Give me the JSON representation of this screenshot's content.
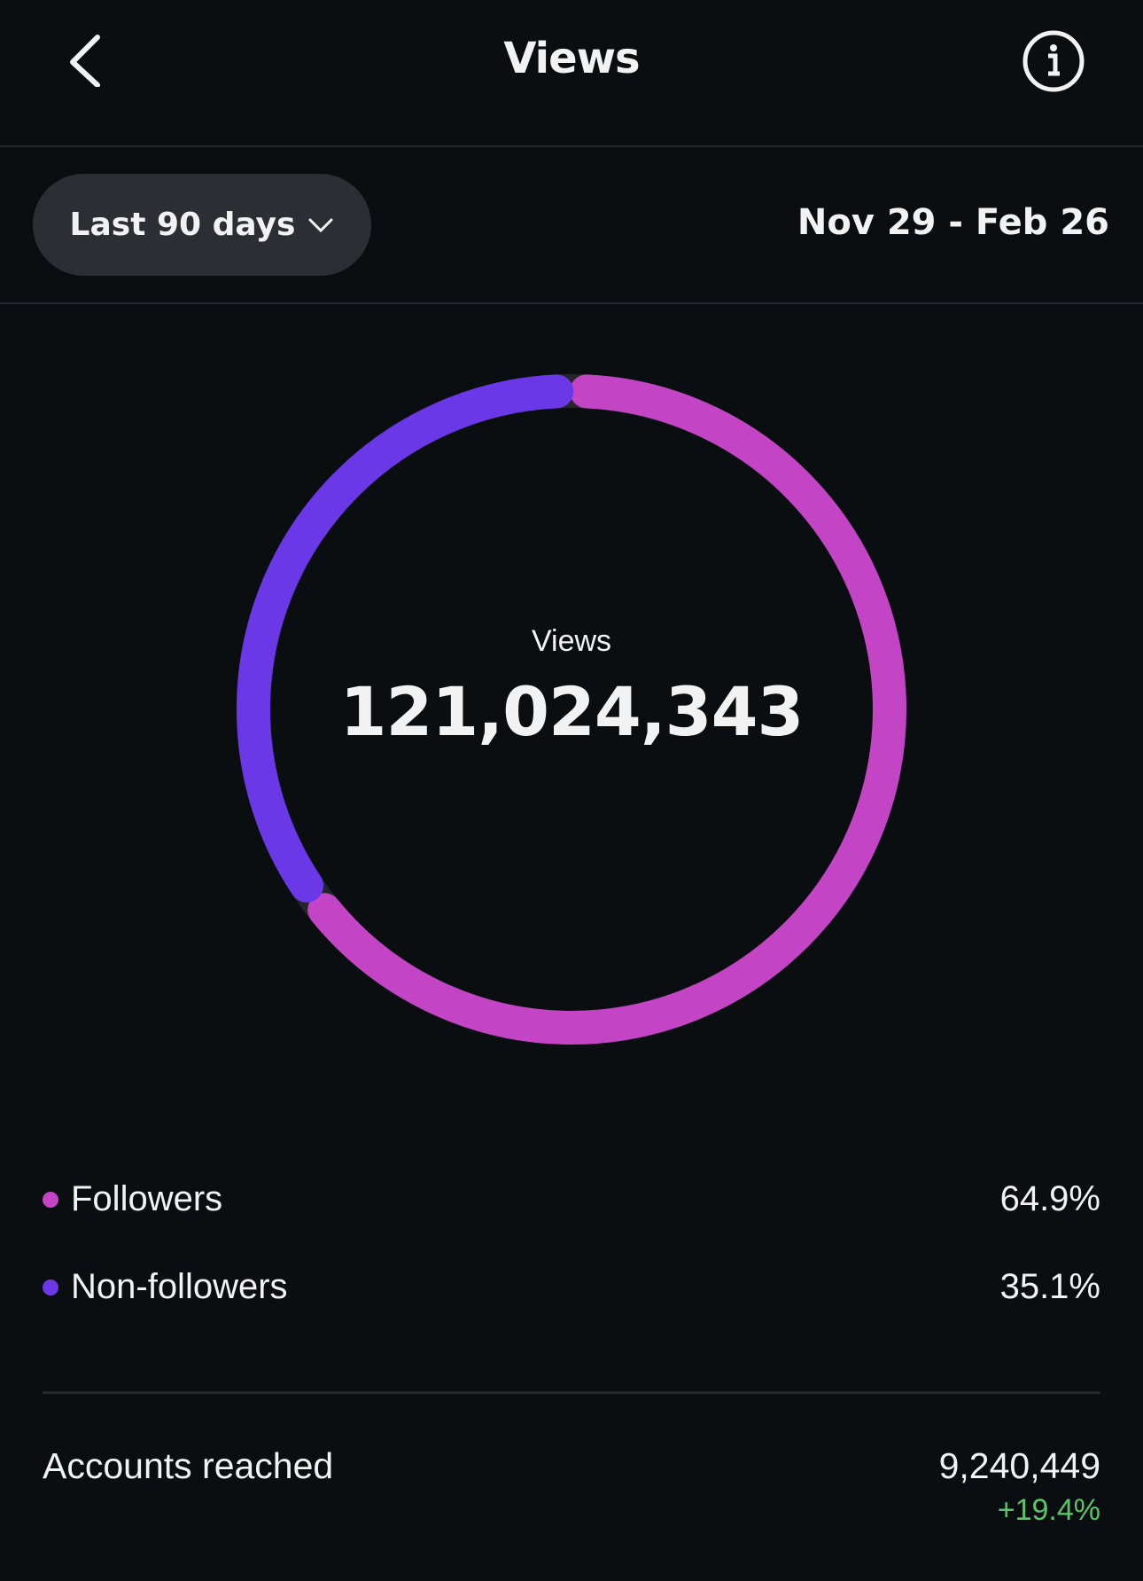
{
  "header": {
    "title": "Views",
    "back_icon": "chevron-left-icon",
    "info_icon": "info-circle-icon"
  },
  "filter": {
    "period_label": "Last 90 days",
    "date_range": "Nov 29 - Feb 26"
  },
  "chart_data": {
    "type": "pie",
    "donut": true,
    "center_label": "Views",
    "center_value": "121,024,343",
    "series": [
      {
        "name": "Followers",
        "value": 64.9,
        "label": "64.9%",
        "color": "#c344c4"
      },
      {
        "name": "Non-followers",
        "value": 35.1,
        "label": "35.1%",
        "color": "#6b38e8"
      }
    ]
  },
  "accounts_reached": {
    "label": "Accounts reached",
    "value": "9,240,449",
    "change": "+19.4%",
    "change_color": "#5bc46b"
  }
}
